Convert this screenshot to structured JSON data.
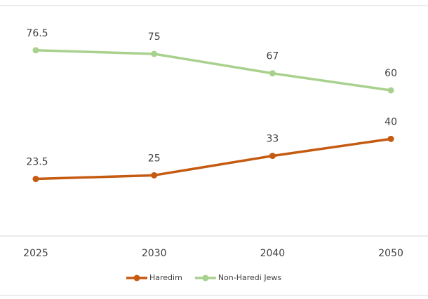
{
  "chart_data": {
    "type": "line",
    "categories": [
      "2025",
      "2030",
      "2040",
      "2050"
    ],
    "series": [
      {
        "name": "Haredim",
        "color": "#c55a11",
        "values": [
          23.5,
          25,
          33,
          40
        ]
      },
      {
        "name": "Non-Haredi Jews",
        "color": "#a9d18e",
        "values": [
          76.5,
          75,
          67,
          60
        ]
      }
    ],
    "ylim": [
      0,
      90
    ]
  }
}
